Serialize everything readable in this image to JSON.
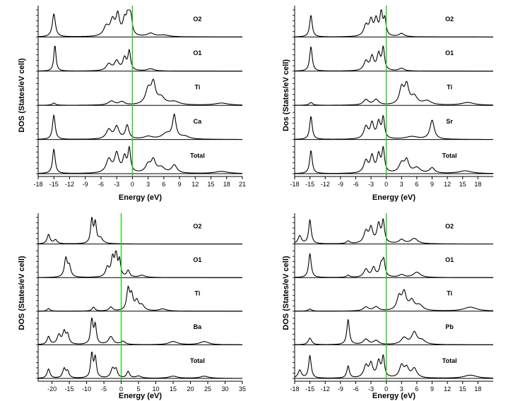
{
  "chart_data": [
    {
      "type": "line",
      "ylabel": "DOS (States/eV cell)",
      "xlabel": "Energy (eV)",
      "xlim": [
        -18,
        21
      ],
      "xticks": [
        -18,
        -15,
        -12,
        -9,
        -6,
        -3,
        0,
        3,
        6,
        9,
        12,
        15,
        18,
        21
      ],
      "fermi_level": 0,
      "fermi_color": "#22cc22",
      "series": [
        {
          "name": "O2",
          "peaks": [
            [
              -15.0,
              0.85,
              0.35
            ],
            [
              -5.0,
              0.35,
              0.6
            ],
            [
              -3.8,
              0.55,
              0.5
            ],
            [
              -2.8,
              0.75,
              0.4
            ],
            [
              -1.5,
              0.55,
              0.4
            ],
            [
              -0.8,
              0.9,
              0.3
            ],
            [
              -0.3,
              0.6,
              0.3
            ],
            [
              3.5,
              0.12,
              0.8
            ],
            [
              6.0,
              0.06,
              1.2
            ]
          ]
        },
        {
          "name": "O1",
          "peaks": [
            [
              -14.8,
              0.95,
              0.25
            ],
            [
              -4.5,
              0.25,
              0.6
            ],
            [
              -3.0,
              0.35,
              0.5
            ],
            [
              -1.5,
              0.45,
              0.4
            ],
            [
              -0.6,
              0.7,
              0.3
            ],
            [
              3.5,
              0.08,
              0.8
            ]
          ]
        },
        {
          "name": "Ti",
          "peaks": [
            [
              -15.0,
              0.08,
              0.4
            ],
            [
              -4.0,
              0.15,
              0.7
            ],
            [
              -2.0,
              0.12,
              0.6
            ],
            [
              3.0,
              0.55,
              0.6
            ],
            [
              4.0,
              0.75,
              0.5
            ],
            [
              5.5,
              0.25,
              0.8
            ],
            [
              8.0,
              0.12,
              1.2
            ],
            [
              17.0,
              0.08,
              1.5
            ]
          ]
        },
        {
          "name": "Ca",
          "peaks": [
            [
              -15.0,
              0.9,
              0.3
            ],
            [
              -4.5,
              0.35,
              0.6
            ],
            [
              -3.0,
              0.45,
              0.5
            ],
            [
              -1.0,
              0.5,
              0.4
            ],
            [
              3.0,
              0.1,
              1.0
            ],
            [
              6.5,
              0.2,
              1.0
            ],
            [
              8.0,
              0.85,
              0.4
            ],
            [
              10.0,
              0.1,
              1.0
            ]
          ]
        },
        {
          "name": "Total",
          "peaks": [
            [
              -15.0,
              0.9,
              0.3
            ],
            [
              -4.5,
              0.5,
              0.6
            ],
            [
              -3.0,
              0.7,
              0.5
            ],
            [
              -1.5,
              0.55,
              0.4
            ],
            [
              -0.6,
              0.85,
              0.3
            ],
            [
              3.0,
              0.3,
              0.6
            ],
            [
              4.0,
              0.45,
              0.5
            ],
            [
              5.5,
              0.2,
              0.8
            ],
            [
              8.0,
              0.3,
              0.6
            ],
            [
              17.0,
              0.08,
              1.5
            ]
          ]
        }
      ]
    },
    {
      "type": "line",
      "ylabel": "Dos (States/eV cell)",
      "xlabel": "Energy (eV)",
      "xlim": [
        -18,
        21
      ],
      "xticks": [
        -18,
        -15,
        -12,
        -9,
        -6,
        -3,
        0,
        3,
        6,
        9,
        12,
        15,
        18
      ],
      "fermi_level": 0,
      "fermi_color": "#22cc22",
      "series": [
        {
          "name": "O2",
          "peaks": [
            [
              -14.8,
              0.8,
              0.3
            ],
            [
              -4.0,
              0.4,
              0.5
            ],
            [
              -3.0,
              0.55,
              0.4
            ],
            [
              -2.0,
              0.6,
              0.4
            ],
            [
              -1.0,
              0.85,
              0.3
            ],
            [
              -0.3,
              0.6,
              0.3
            ],
            [
              3.0,
              0.12,
              0.6
            ]
          ]
        },
        {
          "name": "O1",
          "peaks": [
            [
              -14.8,
              0.9,
              0.3
            ],
            [
              -4.0,
              0.35,
              0.5
            ],
            [
              -2.8,
              0.5,
              0.4
            ],
            [
              -1.5,
              0.6,
              0.4
            ],
            [
              -0.6,
              0.8,
              0.3
            ],
            [
              3.0,
              0.1,
              0.6
            ]
          ]
        },
        {
          "name": "Ti",
          "peaks": [
            [
              -14.8,
              0.1,
              0.4
            ],
            [
              -4.0,
              0.2,
              0.6
            ],
            [
              -2.0,
              0.2,
              0.6
            ],
            [
              3.0,
              0.6,
              0.5
            ],
            [
              4.0,
              0.7,
              0.5
            ],
            [
              5.5,
              0.3,
              0.7
            ],
            [
              8.0,
              0.15,
              1.0
            ],
            [
              16.0,
              0.1,
              1.5
            ]
          ]
        },
        {
          "name": "Sr",
          "peaks": [
            [
              -14.8,
              0.85,
              0.3
            ],
            [
              -4.0,
              0.45,
              0.5
            ],
            [
              -2.8,
              0.55,
              0.4
            ],
            [
              -1.5,
              0.6,
              0.4
            ],
            [
              -0.6,
              0.75,
              0.3
            ],
            [
              5.0,
              0.1,
              1.5
            ],
            [
              9.0,
              0.7,
              0.5
            ]
          ]
        },
        {
          "name": "Total",
          "peaks": [
            [
              -14.8,
              0.85,
              0.3
            ],
            [
              -4.0,
              0.45,
              0.5
            ],
            [
              -2.8,
              0.6,
              0.4
            ],
            [
              -1.5,
              0.65,
              0.4
            ],
            [
              -0.6,
              0.85,
              0.3
            ],
            [
              3.0,
              0.35,
              0.6
            ],
            [
              4.0,
              0.45,
              0.5
            ],
            [
              6.0,
              0.2,
              0.8
            ],
            [
              9.0,
              0.2,
              0.6
            ],
            [
              15.5,
              0.1,
              1.5
            ]
          ]
        }
      ]
    },
    {
      "type": "line",
      "ylabel": "DOS (States/eV cell)",
      "xlabel": "Energy (eV)",
      "xlim": [
        -24,
        35
      ],
      "xticks": [
        -20,
        -15,
        -10,
        -5,
        0,
        5,
        10,
        15,
        20,
        25,
        30,
        35
      ],
      "fermi_level": 0,
      "fermi_color": "#22cc22",
      "series": [
        {
          "name": "O2",
          "peaks": [
            [
              -21.0,
              0.35,
              0.5
            ],
            [
              -19.0,
              0.15,
              0.6
            ],
            [
              -8.5,
              0.9,
              0.4
            ],
            [
              -7.5,
              0.75,
              0.4
            ],
            [
              -6.0,
              0.2,
              0.8
            ]
          ]
        },
        {
          "name": "O1",
          "peaks": [
            [
              -16.0,
              0.7,
              0.5
            ],
            [
              -15.0,
              0.4,
              0.5
            ],
            [
              -4.0,
              0.35,
              0.6
            ],
            [
              -2.5,
              0.7,
              0.5
            ],
            [
              -1.5,
              0.85,
              0.4
            ],
            [
              -0.5,
              0.6,
              0.4
            ],
            [
              2.0,
              0.25,
              0.5
            ],
            [
              6.0,
              0.08,
              1.0
            ]
          ]
        },
        {
          "name": "Ti",
          "peaks": [
            [
              -21.0,
              0.1,
              0.5
            ],
            [
              -8.0,
              0.15,
              0.5
            ],
            [
              -3.0,
              0.15,
              0.6
            ],
            [
              2.0,
              0.8,
              0.5
            ],
            [
              3.0,
              0.55,
              0.5
            ],
            [
              4.5,
              0.35,
              0.6
            ],
            [
              6.0,
              0.2,
              0.8
            ],
            [
              12.0,
              0.08,
              1.2
            ]
          ]
        },
        {
          "name": "Ba",
          "peaks": [
            [
              -21.0,
              0.3,
              0.5
            ],
            [
              -18.0,
              0.35,
              0.6
            ],
            [
              -16.5,
              0.45,
              0.5
            ],
            [
              -15.5,
              0.35,
              0.5
            ],
            [
              -8.5,
              0.95,
              0.4
            ],
            [
              -7.5,
              0.7,
              0.4
            ],
            [
              -3.0,
              0.3,
              0.8
            ],
            [
              0.5,
              0.12,
              0.8
            ],
            [
              15.0,
              0.12,
              1.5
            ],
            [
              24.0,
              0.12,
              1.5
            ]
          ]
        },
        {
          "name": "Total",
          "peaks": [
            [
              -21.0,
              0.35,
              0.5
            ],
            [
              -16.5,
              0.35,
              0.5
            ],
            [
              -15.5,
              0.25,
              0.5
            ],
            [
              -8.5,
              0.9,
              0.4
            ],
            [
              -7.5,
              0.75,
              0.4
            ],
            [
              -2.5,
              0.35,
              0.6
            ],
            [
              -1.5,
              0.3,
              0.5
            ],
            [
              2.0,
              0.25,
              0.5
            ],
            [
              5.0,
              0.08,
              1.0
            ],
            [
              15.0,
              0.08,
              1.5
            ],
            [
              24.0,
              0.08,
              1.5
            ]
          ]
        }
      ]
    },
    {
      "type": "line",
      "ylabel": "DOS (States/eV cell)",
      "xlabel": "Energy (eV)",
      "xlim": [
        -18,
        21
      ],
      "xticks": [
        -18,
        -15,
        -12,
        -9,
        -6,
        -3,
        0,
        3,
        6,
        9,
        12,
        15,
        18
      ],
      "fermi_level": 0,
      "fermi_color": "#22cc22",
      "series": [
        {
          "name": "O2",
          "peaks": [
            [
              -17.0,
              0.3,
              0.4
            ],
            [
              -15.0,
              0.9,
              0.3
            ],
            [
              -7.5,
              0.1,
              0.4
            ],
            [
              -4.0,
              0.45,
              0.5
            ],
            [
              -3.0,
              0.55,
              0.4
            ],
            [
              -1.5,
              0.7,
              0.4
            ],
            [
              -0.6,
              0.8,
              0.3
            ],
            [
              3.0,
              0.15,
              0.6
            ],
            [
              5.5,
              0.2,
              0.8
            ]
          ]
        },
        {
          "name": "O1",
          "peaks": [
            [
              -15.0,
              0.9,
              0.3
            ],
            [
              -7.5,
              0.08,
              0.4
            ],
            [
              -4.0,
              0.3,
              0.5
            ],
            [
              -2.5,
              0.35,
              0.4
            ],
            [
              -1.0,
              0.45,
              0.4
            ],
            [
              -0.5,
              0.55,
              0.3
            ],
            [
              3.0,
              0.1,
              0.6
            ],
            [
              6.0,
              0.2,
              0.8
            ]
          ]
        },
        {
          "name": "Ti",
          "peaks": [
            [
              -15.0,
              0.08,
              0.4
            ],
            [
              -4.0,
              0.15,
              0.6
            ],
            [
              -2.0,
              0.15,
              0.6
            ],
            [
              2.5,
              0.5,
              0.5
            ],
            [
              3.5,
              0.65,
              0.5
            ],
            [
              5.0,
              0.35,
              0.6
            ],
            [
              6.5,
              0.2,
              0.8
            ],
            [
              16.5,
              0.15,
              1.5
            ]
          ]
        },
        {
          "name": "Pb",
          "peaks": [
            [
              -15.0,
              0.25,
              0.4
            ],
            [
              -7.5,
              0.95,
              0.3
            ],
            [
              -4.0,
              0.2,
              0.6
            ],
            [
              -2.0,
              0.15,
              0.6
            ],
            [
              3.5,
              0.25,
              0.7
            ],
            [
              5.5,
              0.45,
              0.6
            ],
            [
              7.0,
              0.15,
              0.8
            ]
          ]
        },
        {
          "name": "Total",
          "peaks": [
            [
              -17.0,
              0.3,
              0.4
            ],
            [
              -15.0,
              0.85,
              0.3
            ],
            [
              -7.5,
              0.45,
              0.3
            ],
            [
              -4.0,
              0.45,
              0.5
            ],
            [
              -3.0,
              0.5,
              0.4
            ],
            [
              -1.5,
              0.6,
              0.4
            ],
            [
              -0.6,
              0.75,
              0.3
            ],
            [
              3.0,
              0.45,
              0.5
            ],
            [
              4.0,
              0.35,
              0.5
            ],
            [
              5.5,
              0.35,
              0.6
            ],
            [
              16.5,
              0.12,
              1.5
            ]
          ]
        }
      ]
    }
  ]
}
